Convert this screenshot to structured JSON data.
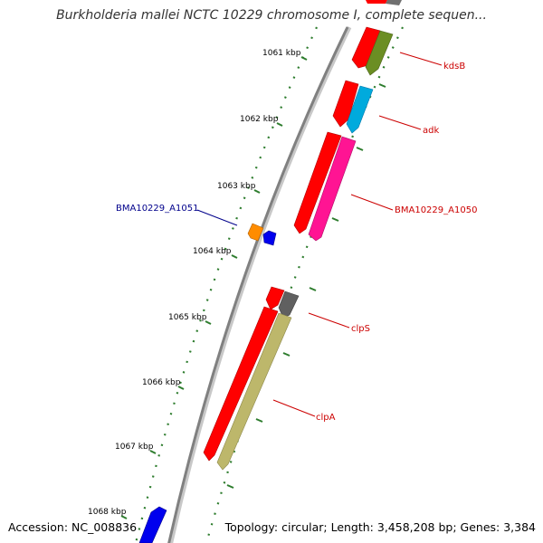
{
  "title": "Burkholderia mallei NCTC 10229 chromosome I, complete sequen...",
  "footer": {
    "accession": "Accession: NC_008836",
    "summary": "Topology: circular; Length: 3,458,208 bp; Genes: 3,384"
  },
  "ticks": [
    "1061 kbp",
    "1062 kbp",
    "1063 kbp",
    "1064 kbp",
    "1065 kbp",
    "1066 kbp",
    "1067 kbp",
    "1068 kbp"
  ],
  "gene_labels": [
    "kdsB",
    "adk",
    "BMA10229_A1050",
    "BMA10229_A1051",
    "clpS",
    "clpA"
  ],
  "colors": {
    "backbone": "#808080",
    "tick": "#2e7d2e",
    "label_forward": "#cc0000",
    "label_reverse": "#00008b",
    "kdsB": "#6b8e23",
    "adk": "#00aadd",
    "BMA10229_A1050": "#ff1493",
    "BMA10229_A1051": "#ff8c00",
    "clpS": "#606060",
    "clpA": "#bdb76b",
    "other_gene": "#ff0000",
    "reverse_gene": "#0000ee"
  }
}
